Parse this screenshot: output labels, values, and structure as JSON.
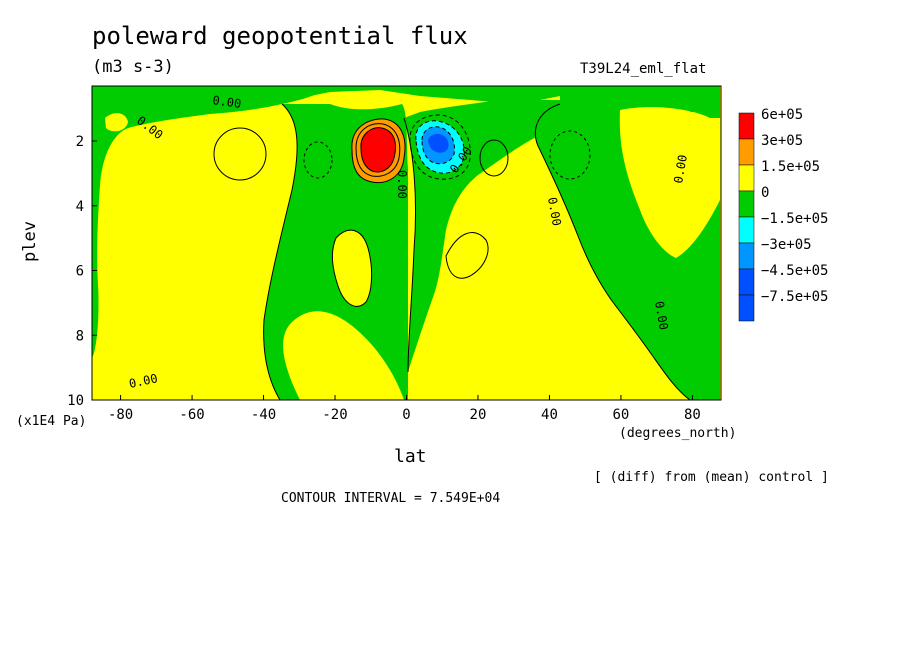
{
  "chart_data": {
    "type": "contour",
    "title": "poleward geopotential flux",
    "units": "(m3 s-3)",
    "run_label": "T39L24_eml_flat",
    "xlabel": "lat",
    "x_units": "(degrees_north)",
    "ylabel": "plev",
    "y_units": "(x1E4 Pa)",
    "xlim": [
      -88,
      88
    ],
    "ylim": [
      10,
      0.3
    ],
    "x_ticks": [
      -80,
      -60,
      -40,
      -20,
      0,
      20,
      40,
      60,
      80
    ],
    "y_ticks": [
      2,
      4,
      6,
      8,
      10
    ],
    "legend": {
      "labels": [
        "6e+05",
        "3e+05",
        "1.5e+05",
        "0",
        "−1.5e+05",
        "−3e+05",
        "−4.5e+05",
        "−7.5e+05"
      ],
      "colors": [
        "#ff0000",
        "#ff9c00",
        "#ffff00",
        "#00cc00",
        "#00ffff",
        "#0096ff",
        "#0050ff",
        "#ff0000"
      ]
    },
    "contour_label": "0.00",
    "contour_interval_text": "CONTOUR INTERVAL = 7.549E+04",
    "diff_note": "[ (diff) from (mean) control ]",
    "features": [
      {
        "type": "max",
        "lat": -10,
        "plev": 2.0,
        "value": 750000.0
      },
      {
        "type": "min",
        "lat": 8,
        "plev": 2.0,
        "value": -450000.0
      }
    ]
  }
}
